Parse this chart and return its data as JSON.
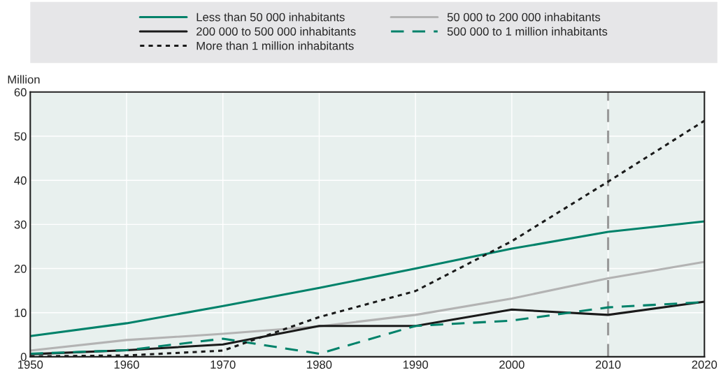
{
  "chart_data": {
    "type": "line",
    "ylabel": "Million",
    "x": [
      1950,
      1960,
      1970,
      1980,
      1990,
      2000,
      2010,
      2020
    ],
    "series": [
      {
        "name": "Less than 50 000 inhabitants",
        "color": "#00826a",
        "line_style": "solid",
        "values": [
          4.7,
          7.6,
          11.5,
          15.6,
          20.0,
          24.5,
          28.3,
          30.7
        ]
      },
      {
        "name": "50 000 to 200 000 inhabitants",
        "color": "#b3b3b3",
        "line_style": "solid",
        "values": [
          1.4,
          3.8,
          5.2,
          6.9,
          9.5,
          13.2,
          17.8,
          21.5
        ]
      },
      {
        "name": "200 000 to 500 000 inhabitants",
        "color": "#1a1a1a",
        "line_style": "solid",
        "values": [
          0.6,
          1.5,
          2.8,
          7.0,
          7.0,
          10.7,
          9.5,
          12.5
        ]
      },
      {
        "name": "500 000 to 1 million inhabitants",
        "color": "#00826a",
        "line_style": "dashed",
        "values": [
          0.7,
          1.5,
          4.1,
          0.7,
          7.0,
          8.2,
          11.2,
          12.4
        ]
      },
      {
        "name": "More than 1 million inhabitants",
        "color": "#1a1a1a",
        "line_style": "dotted",
        "values": [
          0.1,
          0.3,
          1.4,
          9.0,
          14.9,
          26.2,
          39.7,
          53.5
        ]
      }
    ],
    "xlim": [
      1950,
      2020
    ],
    "xticks": [
      1950,
      1960,
      1970,
      1980,
      1990,
      2000,
      2010,
      2020
    ],
    "ylim": [
      0,
      60
    ],
    "yticks": [
      0,
      10,
      20,
      30,
      40,
      50,
      60
    ],
    "ref_lines": [
      {
        "axis": "x",
        "value": 2010,
        "color": "#999999",
        "line_style": "dashed"
      }
    ],
    "grid": true,
    "legend": "top",
    "marker": "none"
  }
}
